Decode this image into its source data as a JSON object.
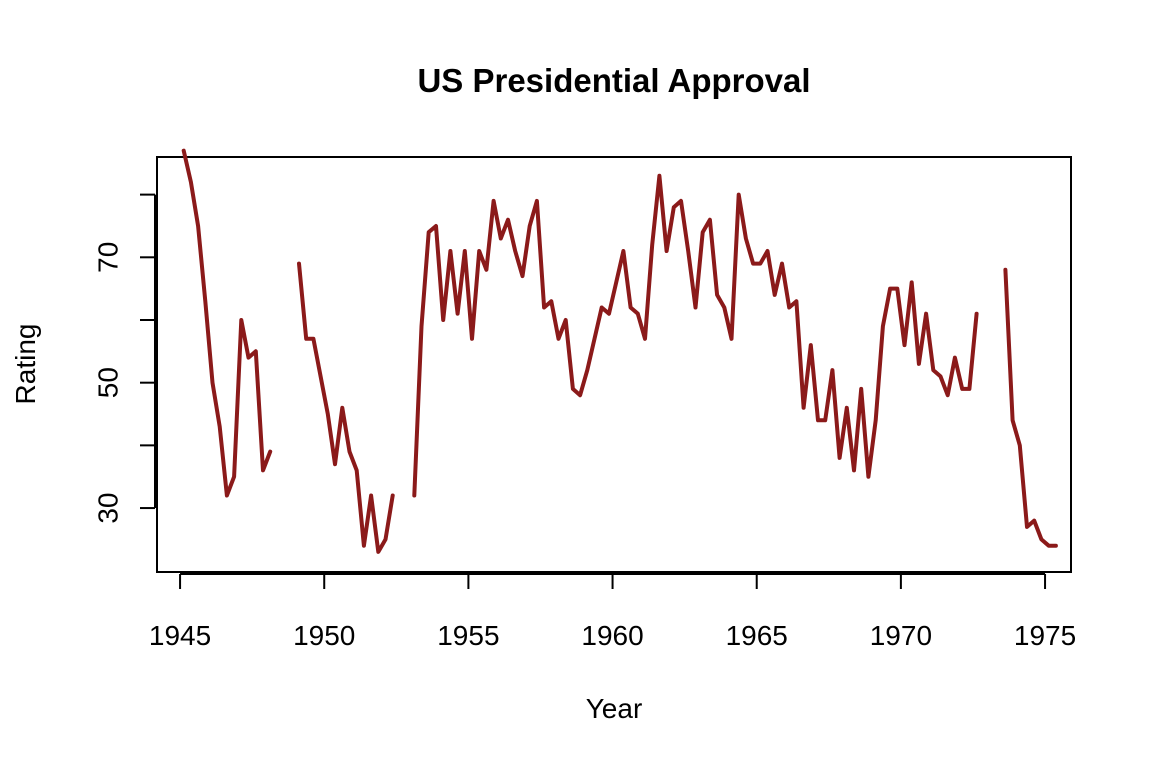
{
  "chart_data": {
    "type": "line",
    "title": "US Presidential Approval",
    "xlabel": "Year",
    "ylabel": "Rating",
    "xlim": [
      1944.2,
      1975.9
    ],
    "ylim": [
      19.8,
      86.0
    ],
    "xticks": [
      1945,
      1950,
      1955,
      1960,
      1965,
      1970,
      1975
    ],
    "yticks": [
      30,
      50,
      70
    ],
    "yticks_unlabeled": [
      40,
      60,
      80
    ],
    "grid": false,
    "color": "#8B1A1A",
    "series": [
      {
        "x_start": 1945.125,
        "x_step": 0.25,
        "values": [
          87,
          82,
          75,
          63,
          50,
          43,
          32,
          35,
          60,
          54,
          55,
          36,
          39,
          null,
          null,
          null,
          69,
          57,
          57,
          51,
          45,
          37,
          46,
          39,
          36,
          24,
          32,
          23,
          25,
          32,
          null,
          null,
          32,
          59,
          74,
          75,
          60,
          71,
          61,
          71,
          57,
          71,
          68,
          79,
          73,
          76,
          71,
          67,
          75,
          79,
          62,
          63,
          57,
          60,
          49,
          48,
          52,
          57,
          62,
          61,
          66,
          71,
          62,
          61,
          57,
          72,
          83,
          71,
          78,
          79,
          71,
          62,
          74,
          76,
          64,
          62,
          57,
          80,
          73,
          69,
          69,
          71,
          64,
          69,
          62,
          63,
          46,
          56,
          44,
          44,
          52,
          38,
          46,
          36,
          49,
          35,
          44,
          59,
          65,
          65,
          56,
          66,
          53,
          61,
          52,
          51,
          48,
          54,
          49,
          49,
          61,
          null,
          null,
          null,
          68,
          44,
          40,
          27,
          28,
          25,
          24,
          24
        ]
      }
    ]
  }
}
